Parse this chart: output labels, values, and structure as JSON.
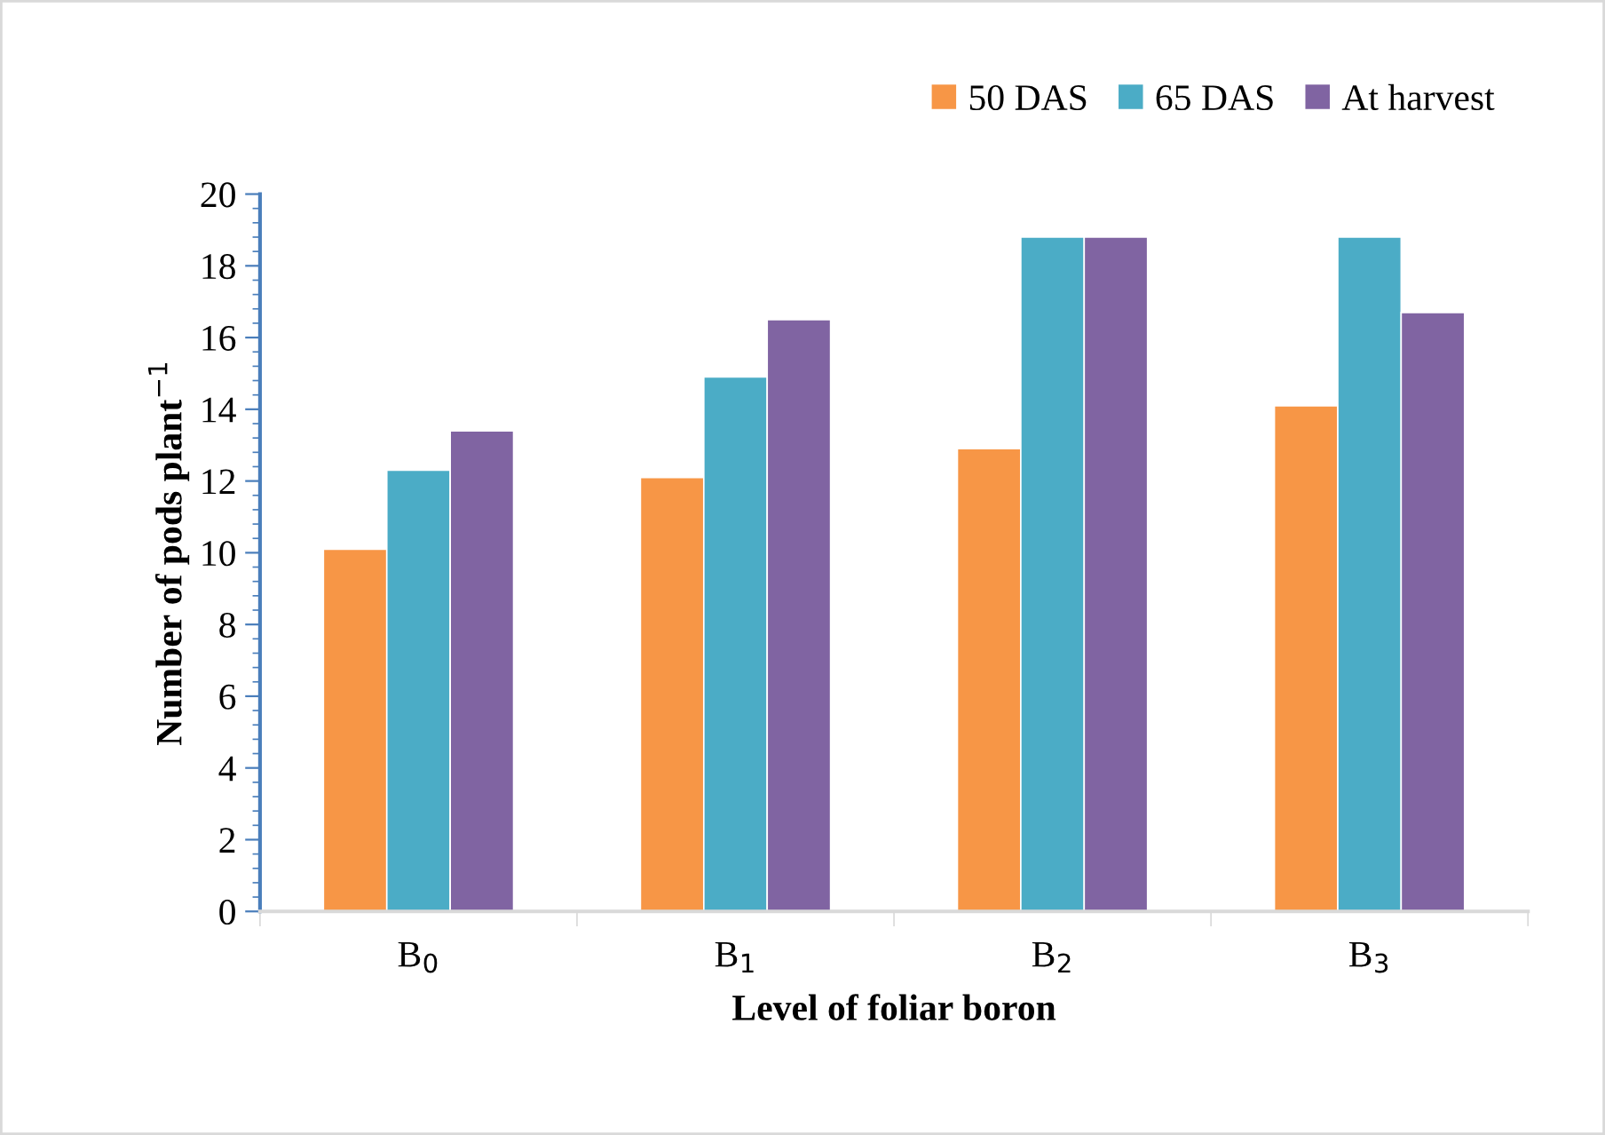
{
  "chart_data": {
    "type": "bar",
    "xlabel": "Level of foliar boron",
    "ylabel": "Number of pods plant$^{−1}$",
    "categories": [
      "B$_{0}$",
      "B$_{1}$",
      "B$_{2}$",
      "B$_{3}$"
    ],
    "series": [
      {
        "name": "50 DAS",
        "color": "#f79646",
        "values": [
          10.1,
          12.1,
          12.9,
          14.1
        ]
      },
      {
        "name": "65 DAS",
        "color": "#4bacc6",
        "values": [
          12.3,
          14.9,
          18.8,
          18.8
        ]
      },
      {
        "name": "At harvest",
        "color": "#8064a2",
        "values": [
          13.4,
          16.5,
          18.8,
          16.7
        ]
      }
    ],
    "ylim": [
      0,
      20
    ],
    "yticks": [
      0,
      2,
      4,
      6,
      8,
      10,
      12,
      14,
      16,
      18,
      20
    ],
    "grid": false,
    "legend": "top right"
  }
}
